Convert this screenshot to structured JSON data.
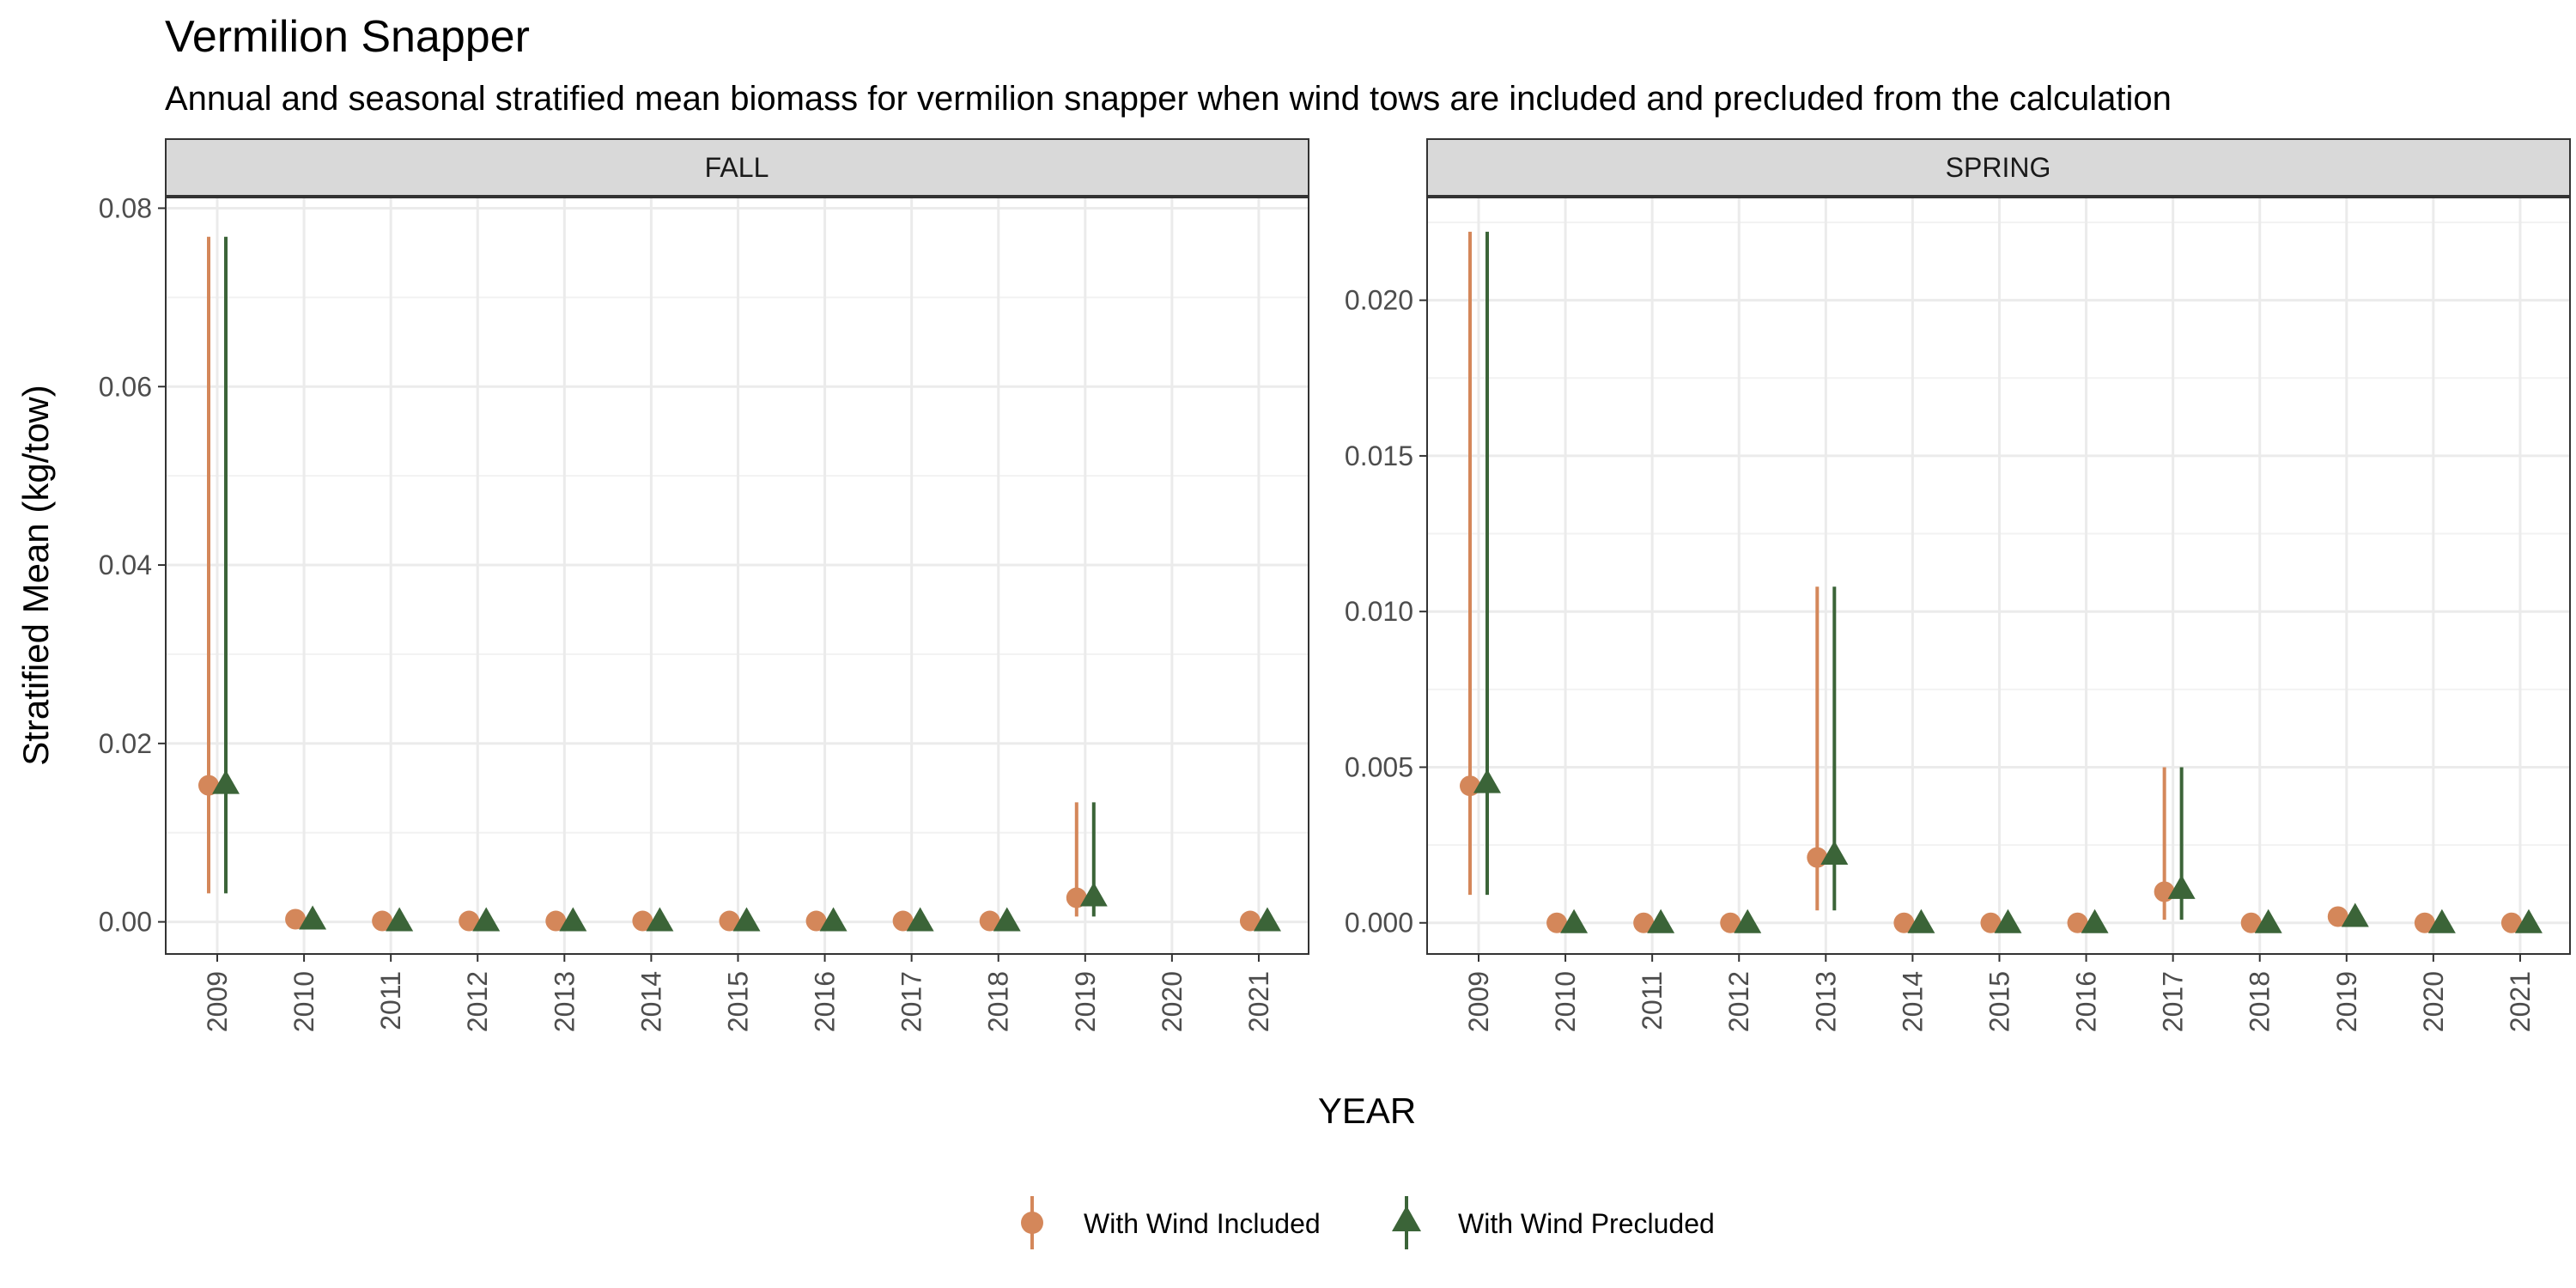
{
  "chart_data": {
    "type": "scatter",
    "title": "Vermilion Snapper",
    "subtitle": "Annual and seasonal stratified mean biomass for vermilion snapper when wind tows are included and precluded from the calculation",
    "xlabel": "YEAR",
    "ylabel": "Stratified Mean (kg/tow)",
    "grid": true,
    "legend_position": "bottom",
    "categories": [
      "2009",
      "2010",
      "2011",
      "2012",
      "2013",
      "2014",
      "2015",
      "2016",
      "2017",
      "2018",
      "2019",
      "2020",
      "2021"
    ],
    "legend": [
      {
        "label": "With Wind Included",
        "color": "#D4875A",
        "shape": "circle"
      },
      {
        "label": "With Wind Precluded",
        "color": "#3B6438",
        "shape": "triangle"
      }
    ],
    "panels": [
      {
        "label": "FALL",
        "ylim": [
          -0.0036,
          0.0812
        ],
        "yticks": [
          0,
          0.02,
          0.04,
          0.06,
          0.08
        ],
        "ytick_labels": [
          "0.00",
          "0.02",
          "0.04",
          "0.06",
          "0.08"
        ],
        "series": [
          {
            "name": "With Wind Included",
            "values": [
              0.0153,
              0.0003,
              0.0001,
              0.0001,
              0.0001,
              0.0001,
              0.0001,
              0.0001,
              0.0001,
              0.0001,
              0.0027,
              null,
              0.0001
            ],
            "lower": [
              0.0032,
              null,
              null,
              null,
              null,
              null,
              null,
              null,
              null,
              null,
              0.0006,
              null,
              null
            ],
            "upper": [
              0.0768,
              null,
              null,
              null,
              null,
              null,
              null,
              null,
              null,
              null,
              0.0134,
              null,
              null
            ]
          },
          {
            "name": "With Wind Precluded",
            "values": [
              0.0155,
              0.0003,
              0.0001,
              0.0001,
              0.0001,
              0.0001,
              0.0001,
              0.0001,
              0.0001,
              0.0001,
              0.0029,
              null,
              0.0001
            ],
            "lower": [
              0.0032,
              null,
              null,
              null,
              null,
              null,
              null,
              null,
              null,
              null,
              0.0006,
              null,
              null
            ],
            "upper": [
              0.0768,
              null,
              null,
              null,
              null,
              null,
              null,
              null,
              null,
              null,
              0.0134,
              null,
              null
            ]
          }
        ]
      },
      {
        "label": "SPRING",
        "ylim": [
          -0.001,
          0.0233
        ],
        "yticks": [
          0,
          0.005,
          0.01,
          0.015,
          0.02
        ],
        "ytick_labels": [
          "0.000",
          "0.005",
          "0.010",
          "0.015",
          "0.020"
        ],
        "series": [
          {
            "name": "With Wind Included",
            "values": [
              0.0044,
              0.0,
              0.0,
              0.0,
              0.0021,
              0.0,
              0.0,
              0.0,
              0.001,
              0.0,
              0.0002,
              0.0,
              0.0
            ],
            "lower": [
              0.0009,
              null,
              null,
              null,
              0.0004,
              null,
              null,
              null,
              0.0001,
              null,
              null,
              null,
              null
            ],
            "upper": [
              0.0222,
              null,
              null,
              null,
              0.0108,
              null,
              null,
              null,
              0.005,
              null,
              0.0006,
              null,
              null
            ]
          },
          {
            "name": "With Wind Precluded",
            "values": [
              0.0045,
              0.0,
              0.0,
              0.0,
              0.0022,
              0.0,
              0.0,
              0.0,
              0.0011,
              0.0,
              0.0002,
              0.0,
              0.0
            ],
            "lower": [
              0.0009,
              null,
              null,
              null,
              0.0004,
              null,
              null,
              null,
              0.0001,
              null,
              null,
              null,
              null
            ],
            "upper": [
              0.0222,
              null,
              null,
              null,
              0.0108,
              null,
              null,
              null,
              0.005,
              null,
              0.0006,
              null,
              null
            ]
          }
        ]
      }
    ]
  }
}
